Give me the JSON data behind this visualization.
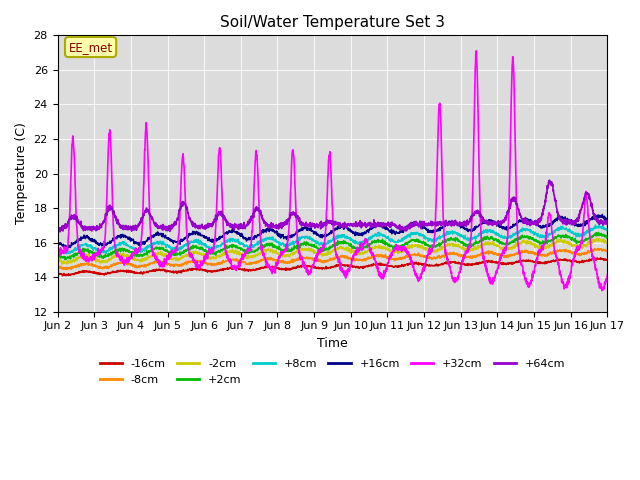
{
  "title": "Soil/Water Temperature Set 3",
  "xlabel": "Time",
  "ylabel": "Temperature (C)",
  "ylim": [
    12,
    28
  ],
  "xlim": [
    0,
    15
  ],
  "xtick_labels": [
    "Jun 2",
    "Jun 3",
    "Jun 4",
    "Jun 5",
    "Jun 6",
    "Jun 7",
    "Jun 8",
    "Jun 9",
    "Jun 10",
    "Jun 11",
    "Jun 12",
    "Jun 13",
    "Jun 14",
    "Jun 15",
    "Jun 16",
    "Jun 17"
  ],
  "xtick_positions": [
    0,
    1,
    2,
    3,
    4,
    5,
    6,
    7,
    8,
    9,
    10,
    11,
    12,
    13,
    14,
    15
  ],
  "ytick_positions": [
    12,
    14,
    16,
    18,
    20,
    22,
    24,
    26,
    28
  ],
  "annotation_text": "EE_met",
  "bg_color": "#dcdcdc",
  "series_colors": {
    "-16cm": "#cc0000",
    "-8cm": "#ff8800",
    "-2cm": "#cccc00",
    "+2cm": "#00bb00",
    "+8cm": "#00cccc",
    "+16cm": "#000088",
    "+32cm": "#ff00ff",
    "+64cm": "#9900cc"
  },
  "legend_order": [
    "-16cm",
    "-8cm",
    "-2cm",
    "+2cm",
    "+8cm",
    "+16cm",
    "+32cm",
    "+64cm"
  ]
}
